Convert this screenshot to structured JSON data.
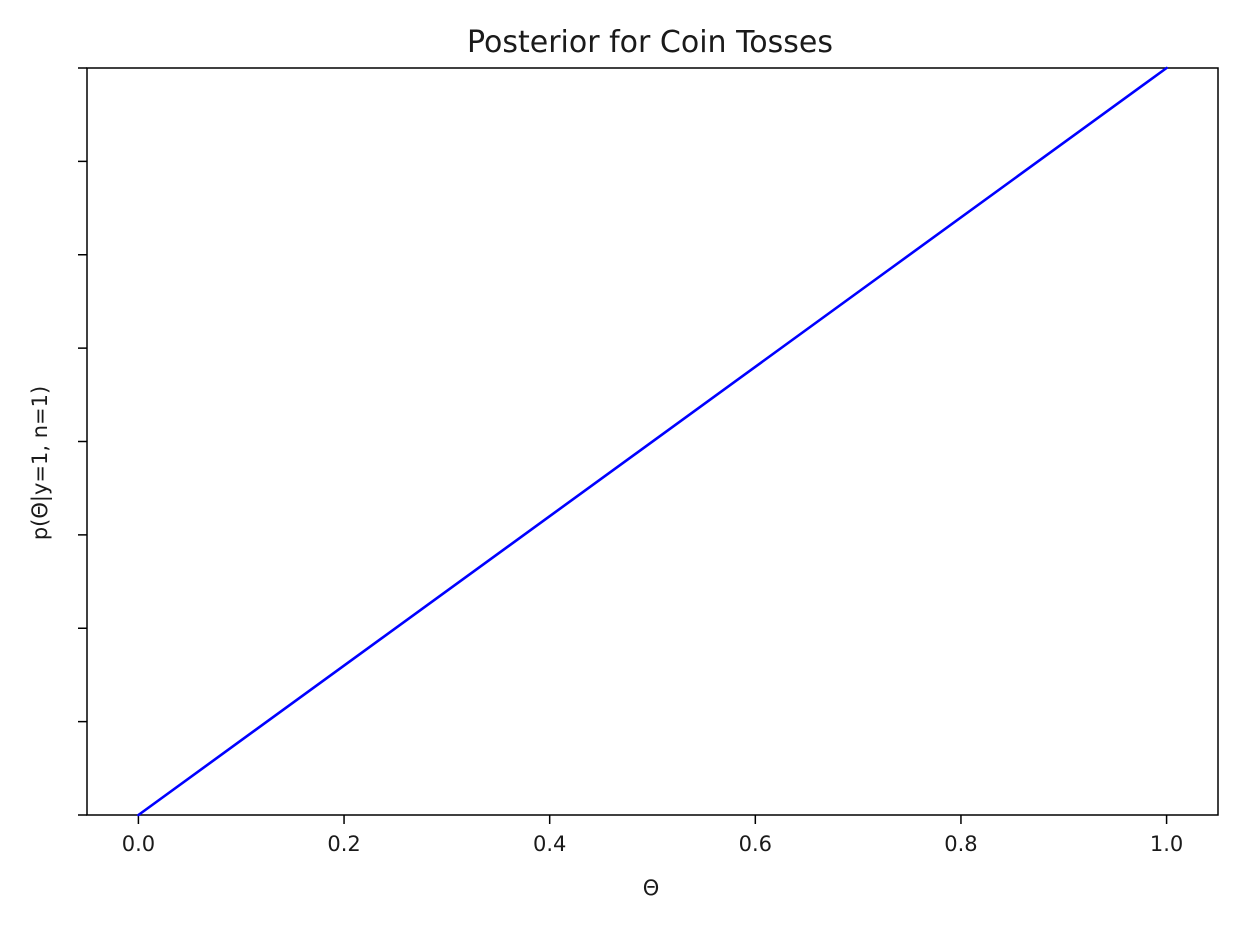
{
  "chart_data": {
    "type": "line",
    "title": "Posterior for Coin Tosses",
    "xlabel": "Θ",
    "ylabel": "p(Θ|y=1, n=1)",
    "xlim": [
      -0.05,
      1.05
    ],
    "ylim": [
      0,
      2.0
    ],
    "x_ticks": [
      0.0,
      0.2,
      0.4,
      0.6,
      0.8,
      1.0
    ],
    "x_tick_labels": [
      "0.0",
      "0.2",
      "0.4",
      "0.6",
      "0.8",
      "1.0"
    ],
    "y_ticks": [
      0,
      0.25,
      0.5,
      0.75,
      1.0,
      1.25,
      1.5,
      1.75,
      2.0
    ],
    "y_tick_labels_shown": false,
    "grid": false,
    "series": [
      {
        "color": "#0000ff",
        "x": [
          0.0,
          1.0
        ],
        "y": [
          0.0,
          2.0
        ]
      }
    ]
  }
}
